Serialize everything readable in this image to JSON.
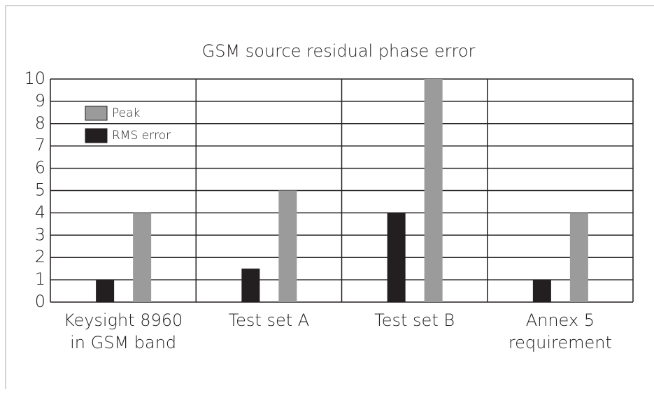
{
  "chart_data": {
    "type": "bar",
    "title": "GSM source residual phase error",
    "categories": [
      [
        "Keysight 8960",
        "in GSM band"
      ],
      [
        "Test set A"
      ],
      [
        "Test set B"
      ],
      [
        "Annex 5",
        "requirement"
      ]
    ],
    "series": [
      {
        "name": "Peak",
        "color": "#9b9b9b",
        "values": [
          4,
          5,
          10,
          4
        ]
      },
      {
        "name": "RMS error",
        "color": "#231f20",
        "values": [
          1,
          1.5,
          4,
          1
        ]
      }
    ],
    "ylim": [
      0,
      10
    ],
    "yticks": [
      0,
      1,
      2,
      3,
      4,
      5,
      6,
      7,
      8,
      9,
      10
    ],
    "grid": true,
    "legend": "upper left"
  }
}
